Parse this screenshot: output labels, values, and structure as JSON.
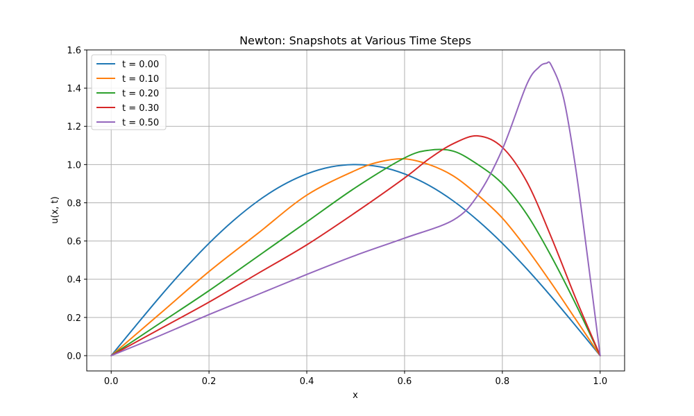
{
  "chart_data": {
    "type": "line",
    "title": "Newton: Snapshots at Various Time Steps",
    "xlabel": "x",
    "ylabel": "u(x, t)",
    "xlim": [
      -0.05,
      1.05
    ],
    "ylim": [
      -0.08,
      1.6
    ],
    "xticks": [
      "0.0",
      "0.2",
      "0.4",
      "0.6",
      "0.8",
      "1.0"
    ],
    "yticks": [
      "0.0",
      "0.2",
      "0.4",
      "0.6",
      "0.8",
      "1.0",
      "1.2",
      "1.4",
      "1.6"
    ],
    "grid": true,
    "legend_position": "top-left",
    "series": [
      {
        "name": "t = 0.00",
        "color": "#1f77b4",
        "x": [
          0.0,
          0.05,
          0.1,
          0.15,
          0.2,
          0.25,
          0.3,
          0.35,
          0.4,
          0.45,
          0.5,
          0.55,
          0.6,
          0.65,
          0.7,
          0.75,
          0.8,
          0.85,
          0.9,
          0.95,
          1.0
        ],
        "y": [
          0.0,
          0.156,
          0.309,
          0.454,
          0.588,
          0.707,
          0.809,
          0.891,
          0.951,
          0.988,
          1.0,
          0.988,
          0.951,
          0.891,
          0.809,
          0.707,
          0.588,
          0.454,
          0.309,
          0.156,
          0.0
        ]
      },
      {
        "name": "t = 0.10",
        "color": "#ff7f0e",
        "x": [
          0.0,
          0.1,
          0.2,
          0.3,
          0.4,
          0.5,
          0.55,
          0.6,
          0.65,
          0.7,
          0.75,
          0.8,
          0.85,
          0.9,
          0.95,
          1.0
        ],
        "y": [
          0.0,
          0.22,
          0.44,
          0.64,
          0.84,
          0.97,
          1.015,
          1.03,
          1.0,
          0.94,
          0.84,
          0.72,
          0.56,
          0.38,
          0.19,
          0.0
        ]
      },
      {
        "name": "t = 0.20",
        "color": "#2ca02c",
        "x": [
          0.0,
          0.1,
          0.2,
          0.3,
          0.4,
          0.5,
          0.6,
          0.65,
          0.7,
          0.75,
          0.8,
          0.85,
          0.9,
          0.95,
          1.0
        ],
        "y": [
          0.0,
          0.17,
          0.34,
          0.52,
          0.7,
          0.88,
          1.035,
          1.075,
          1.07,
          1.0,
          0.9,
          0.74,
          0.52,
          0.27,
          0.0
        ]
      },
      {
        "name": "t = 0.30",
        "color": "#d62728",
        "x": [
          0.0,
          0.1,
          0.2,
          0.3,
          0.4,
          0.5,
          0.6,
          0.65,
          0.7,
          0.75,
          0.8,
          0.85,
          0.9,
          0.95,
          1.0
        ],
        "y": [
          0.0,
          0.14,
          0.28,
          0.43,
          0.58,
          0.75,
          0.93,
          1.03,
          1.11,
          1.15,
          1.09,
          0.91,
          0.62,
          0.3,
          0.0
        ]
      },
      {
        "name": "t = 0.50",
        "color": "#9467bd",
        "x": [
          0.0,
          0.1,
          0.2,
          0.3,
          0.4,
          0.5,
          0.6,
          0.7,
          0.75,
          0.8,
          0.85,
          0.875,
          0.89,
          0.9,
          0.925,
          0.95,
          0.975,
          1.0
        ],
        "y": [
          0.0,
          0.105,
          0.215,
          0.32,
          0.425,
          0.525,
          0.615,
          0.71,
          0.84,
          1.08,
          1.42,
          1.51,
          1.53,
          1.52,
          1.35,
          0.98,
          0.5,
          0.0
        ]
      }
    ]
  }
}
